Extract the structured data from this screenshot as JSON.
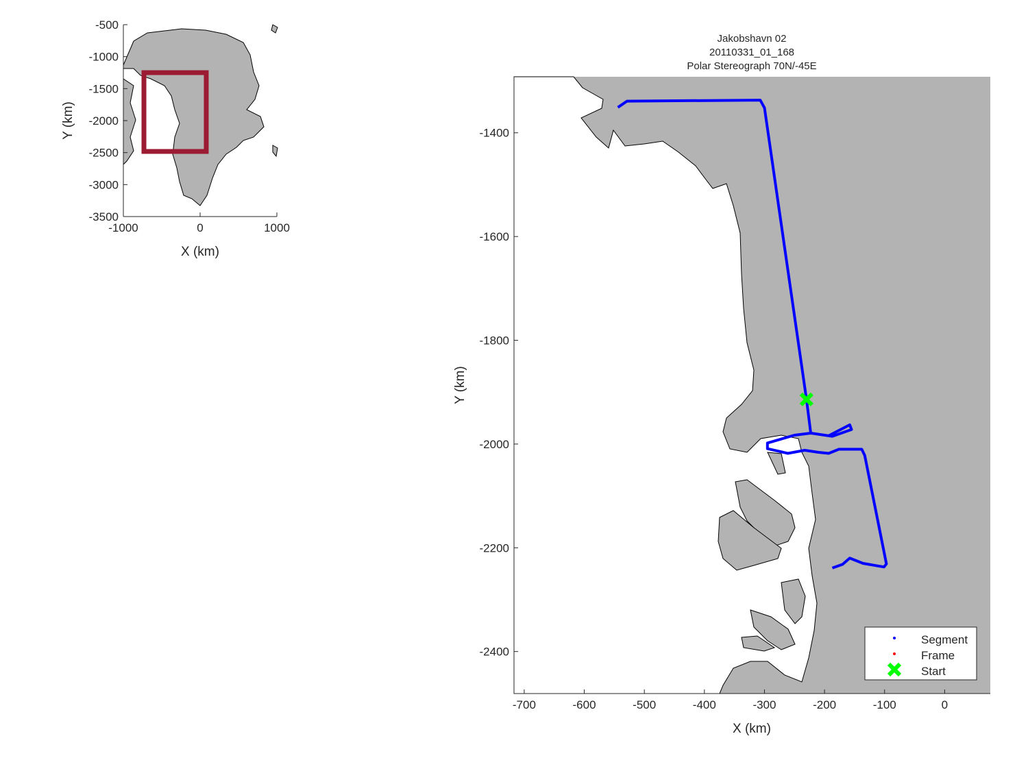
{
  "chart_data": [
    {
      "type": "map",
      "xlabel": "X (km)",
      "ylabel": "Y (km)",
      "xlim": [
        -1000,
        1000
      ],
      "ylim": [
        -3500,
        -500
      ],
      "xticks": [
        -1000,
        0,
        1000
      ],
      "yticks": [
        -3500,
        -3000,
        -2500,
        -2000,
        -1500,
        -1000,
        -500
      ],
      "land_color": "#b3b3b3",
      "region_box": {
        "x": [
          -732,
          80
        ],
        "y": [
          -2482,
          -1250
        ],
        "color": "#9b1b32"
      }
    },
    {
      "type": "line",
      "title": [
        "Jakobshavn 02",
        "20110331_01_168",
        "Polar Stereograph 70N/-45E"
      ],
      "xlabel": "X (km)",
      "ylabel": "Y (km)",
      "xlim": [
        -717,
        76
      ],
      "ylim": [
        -2481,
        -1292
      ],
      "xticks": [
        -700,
        -600,
        -500,
        -400,
        -300,
        -200,
        -100,
        0
      ],
      "yticks": [
        -2400,
        -2200,
        -2000,
        -1800,
        -1600,
        -1400
      ],
      "land_color": "#b3b3b3",
      "grid": false,
      "legend_position": "bottom-right",
      "series": [
        {
          "name": "Segment",
          "color": "#0000ff",
          "x": [
            -544,
            -529,
            -307,
            -300,
            -230,
            -223,
            -193,
            -158,
            -155,
            -187,
            -223,
            -250,
            -295,
            -295,
            -261,
            -233,
            -210,
            -193,
            -176,
            -138,
            -133,
            -97,
            -101,
            -136,
            -158,
            -170,
            -187
          ],
          "y": [
            -1351,
            -1339,
            -1337,
            -1352,
            -1914,
            -1979,
            -1984,
            -1963,
            -1972,
            -1985,
            -1979,
            -1983,
            -1998,
            -2009,
            -2018,
            -2012,
            -2016,
            -2018,
            -2010,
            -2010,
            -2022,
            -2231,
            -2237,
            -2230,
            -2220,
            -2232,
            -2239
          ]
        },
        {
          "name": "Frame",
          "color": "#ff0000",
          "x": [],
          "y": []
        },
        {
          "name": "Start",
          "color": "#00ff00",
          "x": [
            -230
          ],
          "y": [
            -1914
          ]
        }
      ]
    }
  ]
}
